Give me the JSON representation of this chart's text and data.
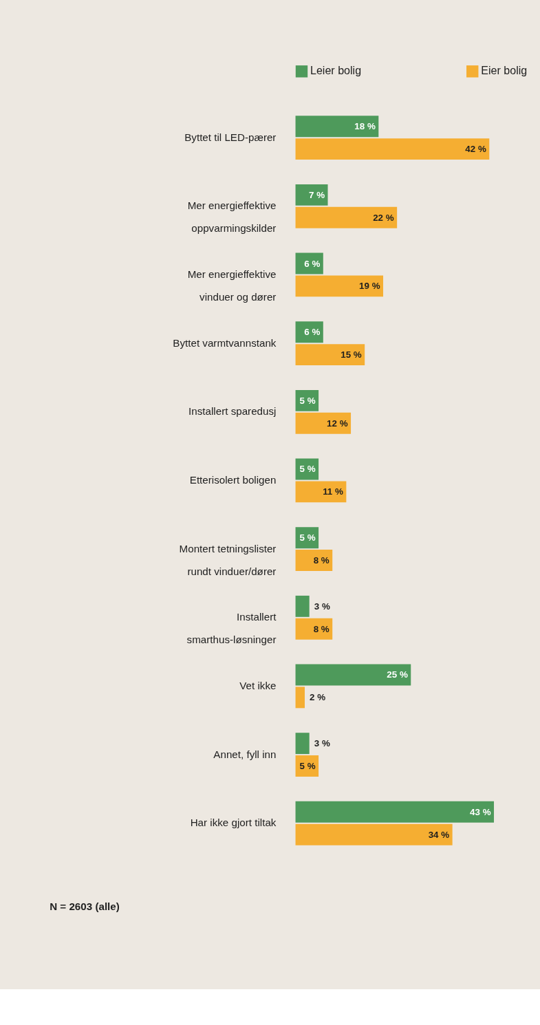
{
  "chart_data": {
    "type": "bar",
    "orientation": "horizontal",
    "legend": "top",
    "categories": [
      "Byttet til LED-pærer",
      "Mer energieffektive oppvarmingskilder",
      "Mer energieffektive vinduer og dører",
      "Byttet varmtvannstank",
      "Installert sparedusj",
      "Etterisolert boligen",
      "Montert tetningslister rundt vinduer/dører",
      "Installert smarthus-løsninger",
      "Vet ikke",
      "Annet, fyll inn",
      "Har ikke gjort tiltak"
    ],
    "series": [
      {
        "name": "Leier bolig",
        "color": "#4e9a5b",
        "values": [
          18,
          7,
          6,
          6,
          5,
          5,
          5,
          3,
          25,
          3,
          43
        ],
        "value_labels": [
          "18 %",
          "7 %",
          "6 %",
          "6 %",
          "5 %",
          "5 %",
          "5 %",
          "3 %",
          "25 %",
          "3 %",
          "43 %"
        ]
      },
      {
        "name": "Eier bolig",
        "color": "#f5ae32",
        "values": [
          42,
          22,
          19,
          15,
          12,
          11,
          8,
          8,
          2,
          5,
          34
        ],
        "value_labels": [
          "42 %",
          "22 %",
          "19 %",
          "15 %",
          "12 %",
          "11 %",
          "8 %",
          "8 %",
          "2 %",
          "5 %",
          "34 %"
        ]
      }
    ],
    "annotations": [
      "N = 2603 (alle)"
    ]
  }
}
